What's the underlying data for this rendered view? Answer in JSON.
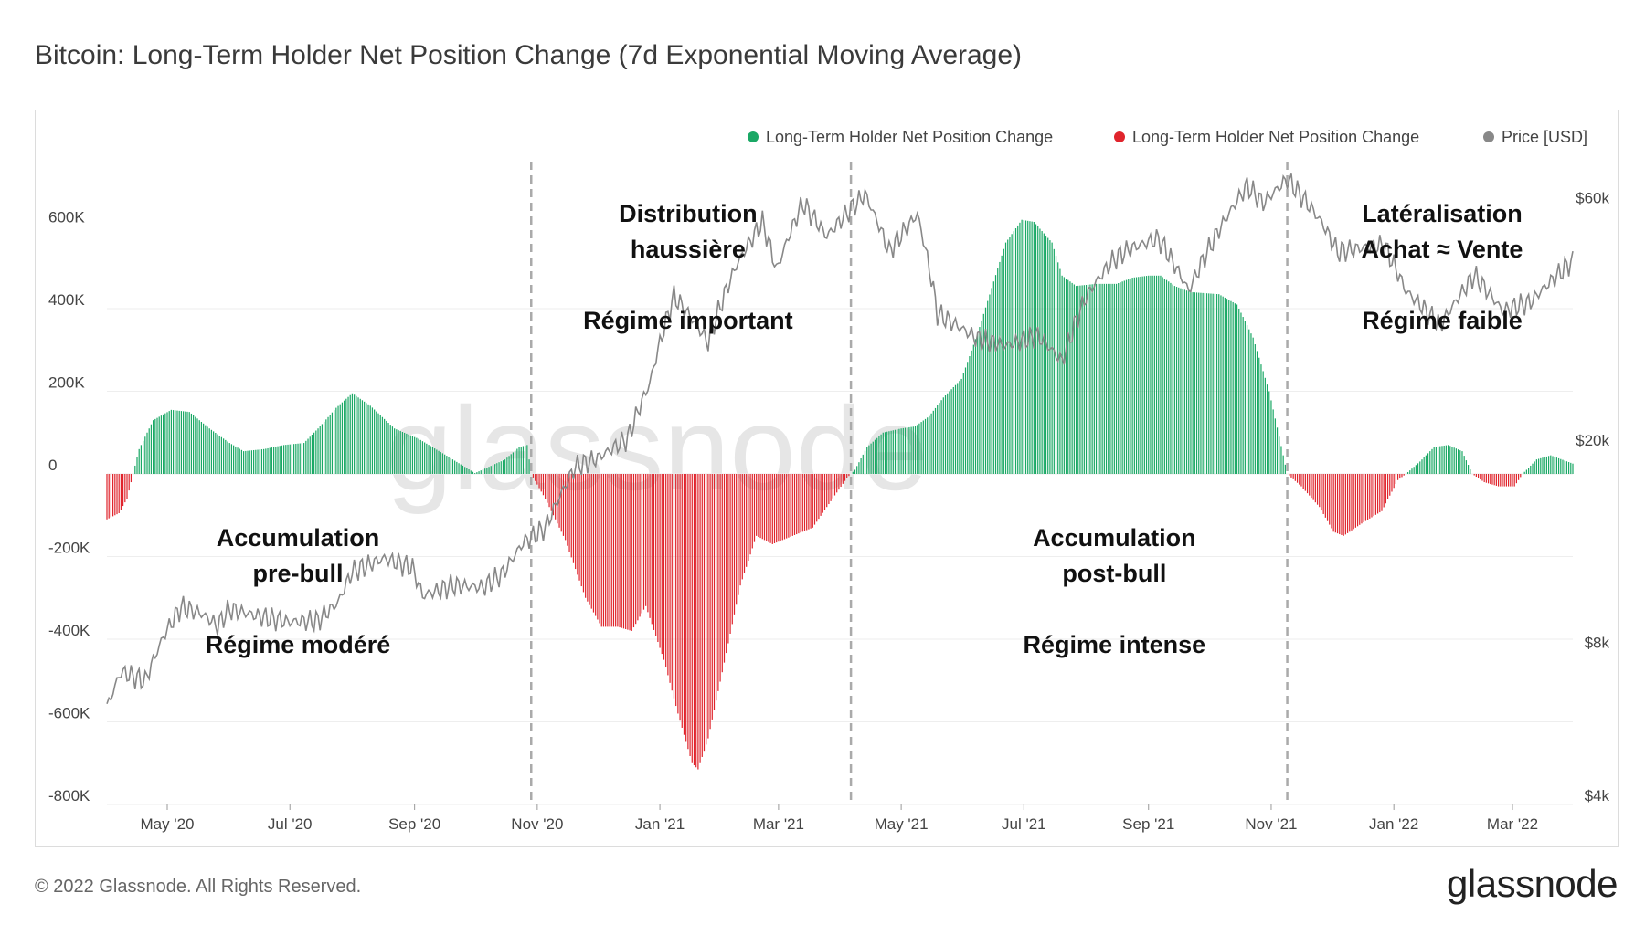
{
  "title": "Bitcoin: Long-Term Holder Net Position Change (7d Exponential Moving Average)",
  "footer": "© 2022 Glassnode. All Rights Reserved.",
  "brand": "glassnode",
  "watermark": "glassnode",
  "colors": {
    "positive": "#1aa865",
    "negative": "#e0242c",
    "price": "#888888",
    "divider": "#aaaaaa",
    "grid": "#eeeeee"
  },
  "chart_data": {
    "type": "bar",
    "title": "Bitcoin: Long-Term Holder Net Position Change (7d Exponential Moving Average)",
    "legend_position": "top-right",
    "grid": true,
    "legend": [
      {
        "label": "Long-Term Holder Net Position Change",
        "color": "#1aa865"
      },
      {
        "label": "Long-Term Holder Net Position Change",
        "color": "#e0242c"
      },
      {
        "label": "Price [USD]",
        "color": "#888888"
      }
    ],
    "x_range": [
      "2020-04-01",
      "2022-03-31"
    ],
    "x_ticks": [
      {
        "date": "2020-05-01",
        "label": "May '20"
      },
      {
        "date": "2020-07-01",
        "label": "Jul '20"
      },
      {
        "date": "2020-09-01",
        "label": "Sep '20"
      },
      {
        "date": "2020-11-01",
        "label": "Nov '20"
      },
      {
        "date": "2021-01-01",
        "label": "Jan '21"
      },
      {
        "date": "2021-03-01",
        "label": "Mar '21"
      },
      {
        "date": "2021-05-01",
        "label": "May '21"
      },
      {
        "date": "2021-07-01",
        "label": "Jul '21"
      },
      {
        "date": "2021-09-01",
        "label": "Sep '21"
      },
      {
        "date": "2021-11-01",
        "label": "Nov '21"
      },
      {
        "date": "2022-01-01",
        "label": "Jan '22"
      },
      {
        "date": "2022-03-01",
        "label": "Mar '22"
      }
    ],
    "y_left": {
      "range": [
        -800000,
        800000
      ],
      "ticks": [
        {
          "value": 600000,
          "label": "600K"
        },
        {
          "value": 400000,
          "label": "400K"
        },
        {
          "value": 200000,
          "label": "200K"
        },
        {
          "value": 0,
          "label": "0"
        },
        {
          "value": -200000,
          "label": "-200K"
        },
        {
          "value": -400000,
          "label": "-400K"
        },
        {
          "value": -600000,
          "label": "-600K"
        },
        {
          "value": -800000,
          "label": "-800K"
        }
      ]
    },
    "y_right": {
      "scale": "log",
      "range": [
        4000,
        80000
      ],
      "ticks": [
        {
          "value": 60000,
          "label": "$60k"
        },
        {
          "value": 20000,
          "label": "$20k"
        },
        {
          "value": 8000,
          "label": "$8k"
        },
        {
          "value": 4000,
          "label": "$4k"
        }
      ]
    },
    "net_position_change": [
      [
        "2020-04-01",
        -110000
      ],
      [
        "2020-04-07",
        -95000
      ],
      [
        "2020-04-11",
        -60000
      ],
      [
        "2020-04-14",
        0
      ],
      [
        "2020-04-17",
        60000
      ],
      [
        "2020-04-24",
        130000
      ],
      [
        "2020-05-03",
        155000
      ],
      [
        "2020-05-12",
        150000
      ],
      [
        "2020-05-22",
        110000
      ],
      [
        "2020-06-01",
        75000
      ],
      [
        "2020-06-08",
        55000
      ],
      [
        "2020-06-18",
        60000
      ],
      [
        "2020-06-28",
        70000
      ],
      [
        "2020-07-08",
        75000
      ],
      [
        "2020-07-16",
        115000
      ],
      [
        "2020-07-24",
        160000
      ],
      [
        "2020-08-01",
        195000
      ],
      [
        "2020-08-10",
        165000
      ],
      [
        "2020-08-22",
        110000
      ],
      [
        "2020-09-03",
        85000
      ],
      [
        "2020-09-15",
        50000
      ],
      [
        "2020-09-25",
        20000
      ],
      [
        "2020-10-01",
        2000
      ],
      [
        "2020-10-07",
        15000
      ],
      [
        "2020-10-16",
        35000
      ],
      [
        "2020-10-23",
        65000
      ],
      [
        "2020-10-27",
        70000
      ],
      [
        "2020-10-29",
        0
      ],
      [
        "2020-11-05",
        -60000
      ],
      [
        "2020-11-15",
        -160000
      ],
      [
        "2020-11-25",
        -300000
      ],
      [
        "2020-12-03",
        -370000
      ],
      [
        "2020-12-11",
        -370000
      ],
      [
        "2020-12-18",
        -380000
      ],
      [
        "2020-12-25",
        -320000
      ],
      [
        "2021-01-03",
        -450000
      ],
      [
        "2021-01-10",
        -580000
      ],
      [
        "2021-01-17",
        -700000
      ],
      [
        "2021-01-20",
        -715000
      ],
      [
        "2021-01-25",
        -640000
      ],
      [
        "2021-02-01",
        -480000
      ],
      [
        "2021-02-10",
        -270000
      ],
      [
        "2021-02-18",
        -150000
      ],
      [
        "2021-02-26",
        -170000
      ],
      [
        "2021-03-08",
        -150000
      ],
      [
        "2021-03-18",
        -130000
      ],
      [
        "2021-03-25",
        -80000
      ],
      [
        "2021-04-04",
        -10000
      ],
      [
        "2021-04-08",
        10000
      ],
      [
        "2021-04-14",
        65000
      ],
      [
        "2021-04-22",
        100000
      ],
      [
        "2021-05-01",
        110000
      ],
      [
        "2021-05-08",
        115000
      ],
      [
        "2021-05-15",
        140000
      ],
      [
        "2021-05-22",
        185000
      ],
      [
        "2021-05-31",
        230000
      ],
      [
        "2021-06-08",
        340000
      ],
      [
        "2021-06-15",
        450000
      ],
      [
        "2021-06-22",
        560000
      ],
      [
        "2021-06-30",
        615000
      ],
      [
        "2021-07-06",
        610000
      ],
      [
        "2021-07-15",
        560000
      ],
      [
        "2021-07-20",
        480000
      ],
      [
        "2021-07-27",
        455000
      ],
      [
        "2021-08-06",
        460000
      ],
      [
        "2021-08-16",
        460000
      ],
      [
        "2021-08-24",
        475000
      ],
      [
        "2021-09-01",
        480000
      ],
      [
        "2021-09-07",
        480000
      ],
      [
        "2021-09-14",
        455000
      ],
      [
        "2021-09-22",
        440000
      ],
      [
        "2021-10-06",
        435000
      ],
      [
        "2021-10-15",
        410000
      ],
      [
        "2021-10-23",
        330000
      ],
      [
        "2021-10-31",
        200000
      ],
      [
        "2021-11-05",
        90000
      ],
      [
        "2021-11-09",
        0
      ],
      [
        "2021-11-16",
        -30000
      ],
      [
        "2021-11-25",
        -80000
      ],
      [
        "2021-12-02",
        -140000
      ],
      [
        "2021-12-07",
        -150000
      ],
      [
        "2021-12-16",
        -120000
      ],
      [
        "2021-12-26",
        -90000
      ],
      [
        "2022-01-03",
        -15000
      ],
      [
        "2022-01-07",
        0
      ],
      [
        "2022-01-14",
        30000
      ],
      [
        "2022-01-21",
        65000
      ],
      [
        "2022-01-28",
        70000
      ],
      [
        "2022-02-04",
        55000
      ],
      [
        "2022-02-09",
        0
      ],
      [
        "2022-02-15",
        -20000
      ],
      [
        "2022-02-22",
        -30000
      ],
      [
        "2022-03-02",
        -30000
      ],
      [
        "2022-03-06",
        0
      ],
      [
        "2022-03-13",
        35000
      ],
      [
        "2022-03-20",
        45000
      ],
      [
        "2022-03-31",
        25000
      ]
    ],
    "price_usd": [
      [
        "2020-04-01",
        6200
      ],
      [
        "2020-04-08",
        7300
      ],
      [
        "2020-04-20",
        7000
      ],
      [
        "2020-04-30",
        8700
      ],
      [
        "2020-05-08",
        9800
      ],
      [
        "2020-05-18",
        9500
      ],
      [
        "2020-05-26",
        9000
      ],
      [
        "2020-06-01",
        9700
      ],
      [
        "2020-06-15",
        9400
      ],
      [
        "2020-06-30",
        9150
      ],
      [
        "2020-07-15",
        9200
      ],
      [
        "2020-07-25",
        10000
      ],
      [
        "2020-08-01",
        11500
      ],
      [
        "2020-08-17",
        12200
      ],
      [
        "2020-08-31",
        11700
      ],
      [
        "2020-09-05",
        10300
      ],
      [
        "2020-09-20",
        10800
      ],
      [
        "2020-10-05",
        10700
      ],
      [
        "2020-10-15",
        11400
      ],
      [
        "2020-10-25",
        13100
      ],
      [
        "2020-11-05",
        14000
      ],
      [
        "2020-11-20",
        18500
      ],
      [
        "2020-12-01",
        19200
      ],
      [
        "2020-12-16",
        21000
      ],
      [
        "2020-12-27",
        27000
      ],
      [
        "2021-01-08",
        40000
      ],
      [
        "2021-01-15",
        37000
      ],
      [
        "2021-01-25",
        32500
      ],
      [
        "2021-02-08",
        46000
      ],
      [
        "2021-02-21",
        56000
      ],
      [
        "2021-02-28",
        45000
      ],
      [
        "2021-03-13",
        61000
      ],
      [
        "2021-03-25",
        52500
      ],
      [
        "2021-04-13",
        63500
      ],
      [
        "2021-04-25",
        49000
      ],
      [
        "2021-05-09",
        58000
      ],
      [
        "2021-05-19",
        37000
      ],
      [
        "2021-06-08",
        33000
      ],
      [
        "2021-06-22",
        32000
      ],
      [
        "2021-07-08",
        33500
      ],
      [
        "2021-07-20",
        29800
      ],
      [
        "2021-08-01",
        40000
      ],
      [
        "2021-08-14",
        47000
      ],
      [
        "2021-08-22",
        49500
      ],
      [
        "2021-09-06",
        52000
      ],
      [
        "2021-09-21",
        41000
      ],
      [
        "2021-10-06",
        54000
      ],
      [
        "2021-10-20",
        66000
      ],
      [
        "2021-10-28",
        61000
      ],
      [
        "2021-11-09",
        68000
      ],
      [
        "2021-11-26",
        56000
      ],
      [
        "2021-12-04",
        49000
      ],
      [
        "2021-12-27",
        50500
      ],
      [
        "2022-01-07",
        41000
      ],
      [
        "2022-01-24",
        35000
      ],
      [
        "2022-02-10",
        44000
      ],
      [
        "2022-02-24",
        37500
      ],
      [
        "2022-03-10",
        39000
      ],
      [
        "2022-03-31",
        47000
      ]
    ],
    "annotations": [
      {
        "lines": [
          "Accumulation",
          "pre-bull",
          "",
          "Régime modéré"
        ],
        "anchor_date": "2020-07-05",
        "anchor_value": -175000
      },
      {
        "lines": [
          "Distribution",
          "haussière",
          "",
          "Régime important"
        ],
        "anchor_date": "2021-01-15",
        "anchor_value": 610000
      },
      {
        "lines": [
          "Accumulation",
          "post-bull",
          "",
          "Régime intense"
        ],
        "anchor_date": "2021-08-15",
        "anchor_value": -175000
      },
      {
        "lines": [
          "Latéralisation",
          "Achat ≈ Vente",
          "",
          "Régime faible"
        ],
        "anchor_date": "2022-01-25",
        "anchor_value": 610000
      }
    ],
    "regime_dividers": [
      "2020-10-29",
      "2021-04-06",
      "2021-11-09"
    ]
  }
}
